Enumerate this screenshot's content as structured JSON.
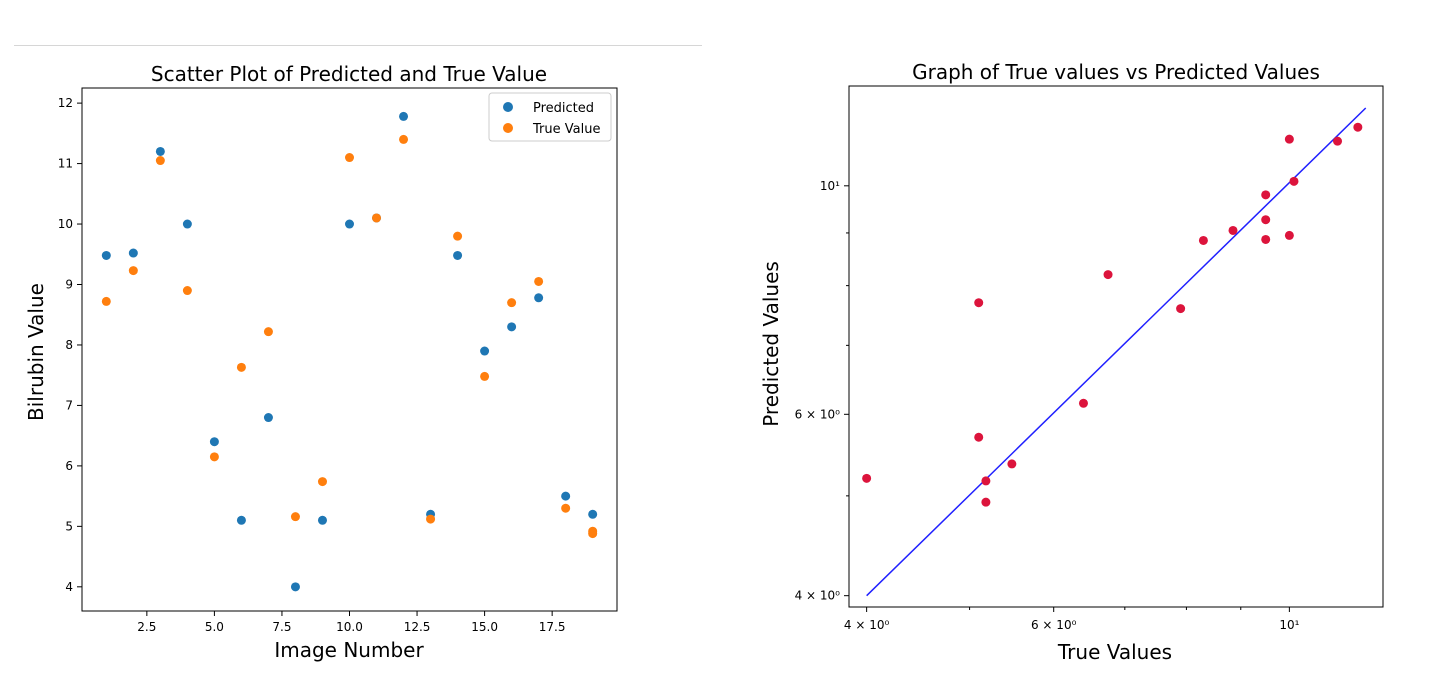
{
  "chart_data": [
    {
      "type": "scatter",
      "title": "Scatter Plot of Predicted and True Value",
      "xlabel": "Image Number",
      "ylabel": "Bilrubin Value",
      "xlim": [
        0.1,
        19.9
      ],
      "ylim": [
        3.6,
        12.25
      ],
      "x_ticks": [
        2.5,
        5.0,
        7.5,
        10.0,
        12.5,
        15.0,
        17.5
      ],
      "x_tick_labels": [
        "2.5",
        "5.0",
        "7.5",
        "10.0",
        "12.5",
        "15.0",
        "17.5"
      ],
      "y_ticks": [
        4,
        5,
        6,
        7,
        8,
        9,
        10,
        11,
        12
      ],
      "y_tick_labels": [
        "4",
        "5",
        "6",
        "7",
        "8",
        "9",
        "10",
        "11",
        "12"
      ],
      "legend_position": "top-right",
      "series": [
        {
          "name": "Predicted",
          "color": "#1f77b4",
          "points": [
            [
              1,
              9.48
            ],
            [
              2,
              9.52
            ],
            [
              3,
              11.2
            ],
            [
              4,
              10.0
            ],
            [
              5,
              6.4
            ],
            [
              6,
              5.1
            ],
            [
              7,
              6.8
            ],
            [
              8,
              4.0
            ],
            [
              9,
              5.1
            ],
            [
              10,
              10.0
            ],
            [
              11,
              10.1
            ],
            [
              12,
              11.78
            ],
            [
              13,
              5.2
            ],
            [
              14,
              9.48
            ],
            [
              15,
              7.9
            ],
            [
              16,
              8.3
            ],
            [
              17,
              8.78
            ],
            [
              18,
              5.5
            ],
            [
              19,
              5.2
            ]
          ]
        },
        {
          "name": "True Value",
          "color": "#ff7f0e",
          "points": [
            [
              1,
              8.72
            ],
            [
              2,
              9.23
            ],
            [
              3,
              11.05
            ],
            [
              4,
              8.9
            ],
            [
              5,
              6.15
            ],
            [
              6,
              7.63
            ],
            [
              7,
              8.22
            ],
            [
              8,
              5.16
            ],
            [
              9,
              5.74
            ],
            [
              10,
              11.1
            ],
            [
              11,
              10.1
            ],
            [
              12,
              11.4
            ],
            [
              13,
              5.12
            ],
            [
              14,
              9.8
            ],
            [
              15,
              7.48
            ],
            [
              16,
              8.7
            ],
            [
              17,
              9.05
            ],
            [
              18,
              5.3
            ],
            [
              19,
              4.92
            ],
            [
              19,
              4.88
            ]
          ]
        }
      ]
    },
    {
      "type": "scatter",
      "scale": "log",
      "title": "Graph of True values vs Predicted Values",
      "xlabel": "True Values",
      "ylabel": "Predicted Values",
      "xlim": [
        3.85,
        12.25
      ],
      "ylim": [
        3.9,
        12.5
      ],
      "x_ticks": [
        4,
        6,
        10
      ],
      "x_tick_labels": [
        "4 × 10⁰",
        "6 × 10⁰",
        "10¹"
      ],
      "y_ticks": [
        4,
        6,
        10
      ],
      "y_tick_labels": [
        "4 × 10⁰",
        "6 × 10⁰",
        "10¹"
      ],
      "point_color": "#dc143c",
      "line_color": "#2020ff",
      "fit_line": [
        [
          4.0,
          4.0
        ],
        [
          11.8,
          11.9
        ]
      ],
      "points": [
        [
          4.0,
          5.2
        ],
        [
          5.1,
          7.7
        ],
        [
          5.1,
          5.7
        ],
        [
          5.18,
          5.17
        ],
        [
          5.18,
          4.93
        ],
        [
          5.48,
          5.37
        ],
        [
          6.4,
          6.15
        ],
        [
          6.75,
          8.2
        ],
        [
          7.9,
          7.6
        ],
        [
          8.3,
          8.85
        ],
        [
          8.85,
          9.05
        ],
        [
          9.5,
          9.8
        ],
        [
          9.5,
          9.27
        ],
        [
          9.5,
          8.87
        ],
        [
          10.0,
          11.1
        ],
        [
          10.0,
          8.95
        ],
        [
          10.1,
          10.1
        ],
        [
          11.1,
          11.05
        ],
        [
          11.6,
          11.4
        ]
      ]
    }
  ]
}
